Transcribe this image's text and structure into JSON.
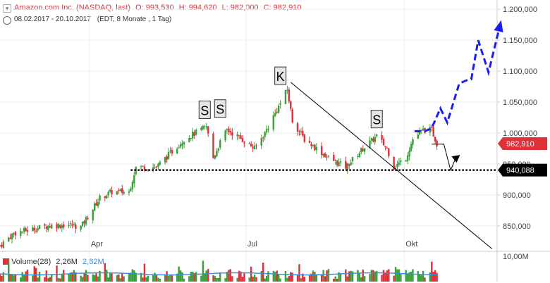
{
  "header": {
    "title": "Amazon.com Inc. (NASDAQ, last)",
    "open_label": "O:",
    "open": "993,530",
    "high_label": "H:",
    "high": "994,620",
    "low_label": "L:",
    "low": "982,000",
    "close_label": "C:",
    "close": "982,910",
    "date_range": "08.02.2017 - 20.10.2017",
    "meta": "(EDT, 8 Monate , 1 Tag)"
  },
  "volume_header": {
    "label": "Volume(28)",
    "value1": "2,26M",
    "value2": "2,82M",
    "axis": "10,00M"
  },
  "colors": {
    "up": "#3aa13a",
    "down": "#e0303a",
    "forecast": "#1a1aff",
    "support": "#000000",
    "volume_avg": "#3d8fd0",
    "price_badge": "#e0303a",
    "support_badge": "#000000"
  },
  "chart_data": {
    "type": "candlestick",
    "title": "Amazon.com Inc. (NASDAQ, last)",
    "y_ticks": [
      "1.200,000",
      "1.150,000",
      "1.100,000",
      "1.050,000",
      "1.000,000",
      "950,000",
      "900,000",
      "850,000"
    ],
    "y_tick_values": [
      1200,
      1150,
      1100,
      1050,
      1000,
      950,
      900,
      850
    ],
    "ylim": [
      810,
      1215
    ],
    "x_ticks": [
      "Apr",
      "Jul",
      "Okt"
    ],
    "x_tick_dates": [
      "2017-04-01",
      "2017-07-01",
      "2017-10-01"
    ],
    "x_range": [
      "2017-02-08",
      "2017-11-24"
    ],
    "last_date": "2017-10-20",
    "current_price_label": "982,910",
    "current_price": 982.91,
    "support_label": "940,088",
    "support_level": 940.088,
    "anchors": [
      [
        "2017-02-08",
        818
      ],
      [
        "2017-02-16",
        838
      ],
      [
        "2017-02-27",
        845
      ],
      [
        "2017-03-08",
        850
      ],
      [
        "2017-03-20",
        852
      ],
      [
        "2017-03-27",
        848
      ],
      [
        "2017-04-07",
        895
      ],
      [
        "2017-04-14",
        905
      ],
      [
        "2017-04-24",
        905
      ],
      [
        "2017-04-28",
        945
      ],
      [
        "2017-05-10",
        945
      ],
      [
        "2017-05-26",
        990
      ],
      [
        "2017-06-08",
        1010
      ],
      [
        "2017-06-12",
        960
      ],
      [
        "2017-06-16",
        985
      ],
      [
        "2017-06-20",
        1005
      ],
      [
        "2017-06-26",
        995
      ],
      [
        "2017-07-06",
        975
      ],
      [
        "2017-07-12",
        1000
      ],
      [
        "2017-07-25",
        1070
      ],
      [
        "2017-07-28",
        1020
      ],
      [
        "2017-08-04",
        990
      ],
      [
        "2017-08-18",
        960
      ],
      [
        "2017-08-28",
        945
      ],
      [
        "2017-09-07",
        975
      ],
      [
        "2017-09-15",
        995
      ],
      [
        "2017-09-21",
        975
      ],
      [
        "2017-09-25",
        945
      ],
      [
        "2017-10-02",
        960
      ],
      [
        "2017-10-06",
        990
      ],
      [
        "2017-10-12",
        1005
      ],
      [
        "2017-10-17",
        1005
      ],
      [
        "2017-10-20",
        983
      ]
    ],
    "annotations": [
      {
        "text": "S",
        "date": "2017-06-07",
        "value": 1037
      },
      {
        "text": "S",
        "date": "2017-06-16",
        "value": 1039
      },
      {
        "text": "K",
        "date": "2017-07-21",
        "value": 1092
      },
      {
        "text": "S",
        "date": "2017-09-15",
        "value": 1022
      }
    ],
    "trend_line": [
      [
        "2017-07-27",
        1082
      ],
      [
        "2017-11-21",
        813
      ]
    ],
    "forecast_path": [
      [
        "2017-10-07",
        1003
      ],
      [
        "2017-10-13",
        1003
      ],
      [
        "2017-10-17",
        1008
      ],
      [
        "2017-10-22",
        1040
      ],
      [
        "2017-10-26",
        1017
      ],
      [
        "2017-11-02",
        1080
      ],
      [
        "2017-11-06",
        1085
      ],
      [
        "2017-11-09",
        1087
      ],
      [
        "2017-11-13",
        1150
      ],
      [
        "2017-11-19",
        1098
      ],
      [
        "2017-11-26",
        1178
      ]
    ],
    "bounce_path": [
      [
        "2017-10-17",
        982
      ],
      [
        "2017-10-24",
        982
      ],
      [
        "2017-10-28",
        940
      ],
      [
        "2017-10-31",
        960
      ]
    ]
  }
}
